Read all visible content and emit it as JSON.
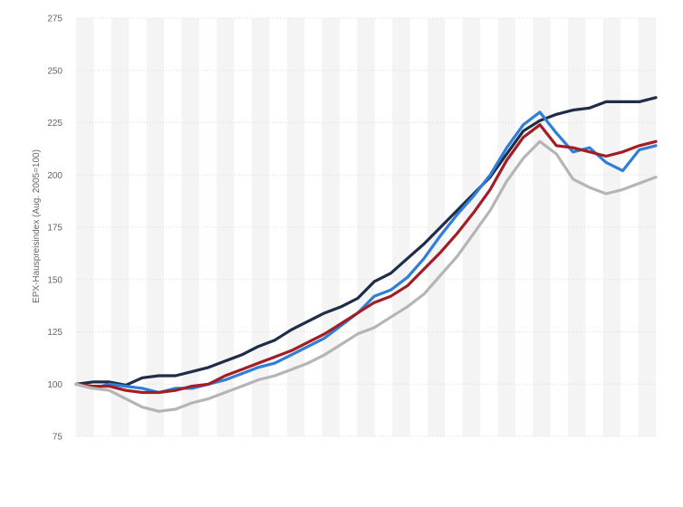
{
  "chart_data": {
    "type": "line",
    "title": "",
    "xlabel": "",
    "ylabel": "EPX-Hauspreisindex (Aug. 2005=100)",
    "ylim": [
      75,
      275
    ],
    "yticks": [
      75,
      100,
      125,
      150,
      175,
      200,
      225,
      250,
      275
    ],
    "x": [
      0,
      6,
      12,
      18,
      24,
      30,
      36,
      42,
      48,
      54,
      60,
      66,
      72,
      78,
      84,
      90,
      96,
      102,
      108,
      114,
      120,
      126,
      132,
      138,
      144,
      150,
      156,
      162,
      168,
      174,
      180,
      186,
      192,
      198,
      204,
      210
    ],
    "grid": true,
    "legend": "none",
    "series": [
      {
        "color": "#1f2d48",
        "values": [
          100,
          101,
          101,
          99.5,
          103,
          104,
          104,
          106,
          108,
          111,
          114,
          118,
          121,
          126,
          130,
          134,
          137,
          141,
          149,
          153,
          160,
          167,
          175,
          183,
          191,
          199,
          210,
          221,
          226,
          229,
          231,
          232,
          235,
          235,
          235,
          237
        ]
      },
      {
        "color": "#2f7ed8",
        "values": [
          100,
          98,
          100,
          99,
          98,
          96,
          98,
          98,
          100,
          102,
          105,
          108,
          110,
          114,
          118,
          122,
          128,
          134,
          142,
          145,
          151,
          160,
          171,
          181,
          190,
          200,
          213,
          224,
          230,
          220,
          211,
          213,
          206,
          202,
          212,
          214
        ]
      },
      {
        "color": "#a31d24",
        "values": [
          100,
          99,
          99,
          97,
          96,
          96,
          97,
          99,
          100,
          104,
          107,
          110,
          113,
          116,
          120,
          124,
          129,
          134,
          139,
          142,
          147,
          155,
          163,
          172,
          182,
          193,
          207,
          218,
          224,
          214,
          213,
          211,
          209,
          211,
          214,
          216
        ]
      },
      {
        "color": "#b5b5b5",
        "values": [
          100,
          98,
          97,
          93,
          89,
          87,
          88,
          91,
          93,
          96,
          99,
          102,
          104,
          107,
          110,
          114,
          119,
          124,
          127,
          132,
          137,
          143,
          152,
          161,
          172,
          183,
          197,
          208,
          216,
          210,
          198,
          194,
          191,
          193,
          196,
          199
        ]
      }
    ]
  }
}
